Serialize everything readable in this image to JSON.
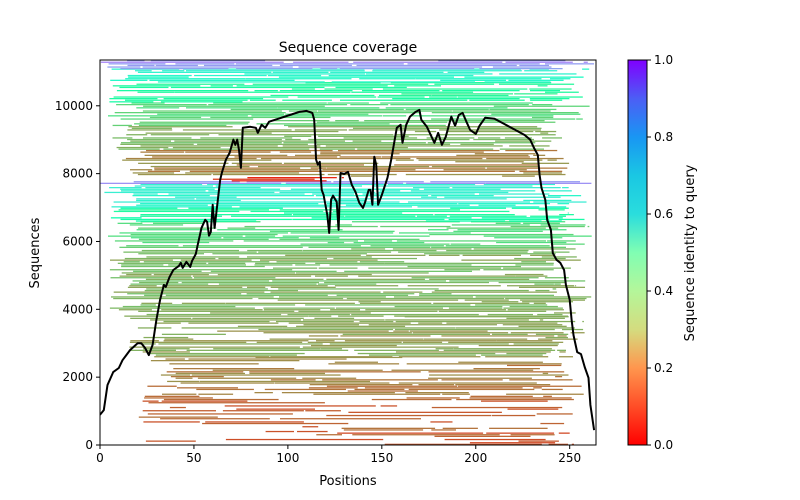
{
  "chart_data": {
    "type": "heatmap",
    "title": "Sequence coverage",
    "xlabel": "Positions",
    "ylabel": "Sequences",
    "xlim": [
      0,
      264
    ],
    "ylim": [
      0,
      11350
    ],
    "x_ticks": [
      0,
      50,
      100,
      150,
      200,
      250
    ],
    "y_ticks": [
      0,
      2000,
      4000,
      6000,
      8000,
      10000
    ],
    "x_tick_labels": [
      "0",
      "50",
      "100",
      "150",
      "200",
      "250"
    ],
    "y_tick_labels": [
      "0",
      "2000",
      "4000",
      "6000",
      "8000",
      "10000"
    ],
    "grid": false,
    "colorbar": {
      "label": "Sequence identity to query",
      "colormap": "rainbow_r",
      "range": [
        0.0,
        1.0
      ],
      "ticks": [
        0.0,
        0.2,
        0.4,
        0.6,
        0.8,
        1.0
      ],
      "tick_labels": [
        "0.0",
        "0.2",
        "0.4",
        "0.6",
        "0.8",
        "1.0"
      ],
      "placement": "right"
    },
    "identity_bands": [
      {
        "seq_range": [
          0,
          1500
        ],
        "identity": 0.12,
        "x_range": [
          20,
          255
        ],
        "density": 0.45
      },
      {
        "seq_range": [
          1500,
          2600
        ],
        "identity": 0.17,
        "x_range": [
          25,
          258
        ],
        "density": 0.6
      },
      {
        "seq_range": [
          2600,
          3800
        ],
        "identity": 0.22,
        "x_range": [
          15,
          260
        ],
        "density": 0.75
      },
      {
        "seq_range": [
          3800,
          5800
        ],
        "identity": 0.25,
        "x_range": [
          5,
          262
        ],
        "density": 0.8
      },
      {
        "seq_range": [
          5800,
          6600
        ],
        "identity": 0.32,
        "x_range": [
          3,
          262
        ],
        "density": 0.8
      },
      {
        "seq_range": [
          6600,
          7000
        ],
        "identity": 0.45,
        "x_range": [
          2,
          262
        ],
        "density": 0.85
      },
      {
        "seq_range": [
          7000,
          7700
        ],
        "identity": 0.6,
        "x_range": [
          2,
          264
        ],
        "density": 0.9
      },
      {
        "seq_range": [
          7700,
          7780
        ],
        "identity": 0.8,
        "x_range": [
          0,
          264
        ],
        "density": 1.0
      },
      {
        "seq_range": [
          7780,
          7900
        ],
        "identity": 0.06,
        "x_range": [
          60,
          130
        ],
        "density": 0.9
      },
      {
        "seq_range": [
          7900,
          8700
        ],
        "identity": 0.18,
        "x_range": [
          10,
          250
        ],
        "density": 0.7
      },
      {
        "seq_range": [
          8700,
          9400
        ],
        "identity": 0.25,
        "x_range": [
          5,
          255
        ],
        "density": 0.75
      },
      {
        "seq_range": [
          9400,
          10100
        ],
        "identity": 0.32,
        "x_range": [
          3,
          262
        ],
        "density": 0.7
      },
      {
        "seq_range": [
          10100,
          10700
        ],
        "identity": 0.42,
        "x_range": [
          3,
          262
        ],
        "density": 0.65
      },
      {
        "seq_range": [
          10700,
          11100
        ],
        "identity": 0.58,
        "x_range": [
          2,
          264
        ],
        "density": 0.7
      },
      {
        "seq_range": [
          11100,
          11350
        ],
        "identity": 0.8,
        "x_range": [
          0,
          264
        ],
        "density": 0.9
      }
    ],
    "coverage_line": {
      "name": "coverage",
      "color": "#000000",
      "x": [
        0,
        2,
        4,
        7,
        10,
        12,
        14,
        16,
        20,
        22,
        24,
        26,
        28,
        30,
        32,
        34,
        35,
        37,
        39,
        42,
        43,
        44,
        46,
        48,
        49,
        51,
        52,
        54,
        56,
        57,
        58,
        59,
        60,
        61,
        63,
        64,
        65,
        67,
        69,
        71,
        72,
        73,
        74,
        75,
        76,
        80,
        83,
        84,
        86,
        88,
        90,
        95,
        101,
        106,
        110,
        113,
        114,
        115,
        116,
        117,
        118,
        119,
        121,
        122,
        123,
        124,
        126,
        127,
        128,
        130,
        132,
        134,
        136,
        138,
        140,
        141,
        143,
        144,
        145,
        146,
        147,
        148,
        150,
        153,
        155,
        158,
        160,
        161,
        163,
        165,
        168,
        170,
        171,
        174,
        178,
        180,
        182,
        184,
        187,
        189,
        191,
        193,
        195,
        197,
        200,
        202,
        205,
        210,
        215,
        221,
        226,
        229,
        231,
        233,
        234,
        235,
        237,
        238,
        240,
        241,
        243,
        245,
        247,
        248,
        250,
        251,
        252,
        254,
        256,
        258,
        260,
        261,
        263
      ],
      "y": [
        890,
        1030,
        1770,
        2150,
        2270,
        2500,
        2650,
        2800,
        3000,
        3000,
        2860,
        2650,
        2950,
        3690,
        4280,
        4720,
        4660,
        4950,
        5160,
        5280,
        5370,
        5220,
        5400,
        5250,
        5430,
        5630,
        5900,
        6400,
        6640,
        6580,
        6170,
        6280,
        7080,
        6400,
        7370,
        7820,
        8050,
        8410,
        8610,
        9000,
        8850,
        9000,
        8700,
        8170,
        9350,
        9380,
        9350,
        9200,
        9440,
        9350,
        9530,
        9620,
        9730,
        9820,
        9850,
        9790,
        9590,
        8410,
        8260,
        8350,
        7520,
        7370,
        6780,
        6250,
        7230,
        7350,
        7170,
        6340,
        8020,
        7990,
        8050,
        7670,
        7460,
        7140,
        6990,
        7140,
        7520,
        7520,
        7080,
        8500,
        8260,
        7080,
        7370,
        7880,
        8410,
        9350,
        9440,
        8910,
        9440,
        9680,
        9820,
        9880,
        9590,
        9380,
        8910,
        9200,
        8850,
        9080,
        9680,
        9410,
        9730,
        9790,
        9530,
        9290,
        9170,
        9410,
        9650,
        9620,
        9470,
        9290,
        9140,
        9000,
        8760,
        8550,
        7960,
        7580,
        7230,
        6640,
        6340,
        5660,
        5460,
        5370,
        5160,
        4720,
        4280,
        3690,
        3240,
        2740,
        2680,
        2300,
        1980,
        1180,
        440
      ]
    }
  }
}
